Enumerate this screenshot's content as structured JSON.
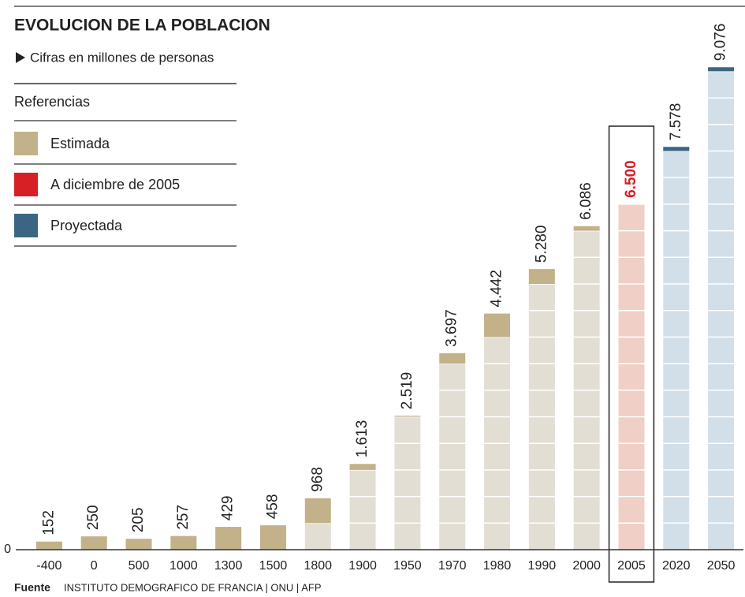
{
  "chart_data": {
    "type": "bar",
    "title": "EVOLUCION DE LA POBLACION",
    "subtitle": "Cifras en millones de personas",
    "legend_title": "Referencias",
    "categories": [
      "-400",
      "0",
      "500",
      "1000",
      "1300",
      "1500",
      "1800",
      "1900",
      "1950",
      "1970",
      "1980",
      "1990",
      "2000",
      "2005",
      "2020",
      "2050"
    ],
    "series": [
      {
        "name": "Estimada",
        "color": "#c2b189",
        "body_color": "#e3ded4",
        "label_color": "#222222",
        "values": [
          152,
          250,
          205,
          257,
          429,
          458,
          968,
          1613,
          2519,
          3697,
          4442,
          5280,
          6086,
          null,
          null,
          null
        ],
        "value_labels": [
          "152",
          "250",
          "205",
          "257",
          "429",
          "458",
          "968",
          "1.613",
          "2.519",
          "3.697",
          "4.442",
          "5.280",
          "6.086",
          null,
          null,
          null
        ]
      },
      {
        "name": "A diciembre de 2005",
        "color": "#d71f26",
        "body_color": "#f0cfc6",
        "label_color": "#d71f26",
        "values": [
          null,
          null,
          null,
          null,
          null,
          null,
          null,
          null,
          null,
          null,
          null,
          null,
          null,
          6500,
          null,
          null
        ],
        "value_labels": [
          null,
          null,
          null,
          null,
          null,
          null,
          null,
          null,
          null,
          null,
          null,
          null,
          null,
          "6.500",
          null,
          null
        ]
      },
      {
        "name": "Proyectada",
        "color": "#3b6683",
        "body_color": "#d3dfe8",
        "label_color": "#222222",
        "values": [
          null,
          null,
          null,
          null,
          null,
          null,
          null,
          null,
          null,
          null,
          null,
          null,
          null,
          null,
          7578,
          9076
        ],
        "value_labels": [
          null,
          null,
          null,
          null,
          null,
          null,
          null,
          null,
          null,
          null,
          null,
          null,
          null,
          null,
          "7.578",
          "9.076"
        ]
      }
    ],
    "ylim": [
      0,
      10000
    ],
    "yticks": [
      0
    ],
    "stripe_step": 500,
    "source": {
      "label": "Fuente",
      "text": "INSTITUTO DEMOGRAFICO DE FRANCIA | ONU | AFP"
    }
  }
}
